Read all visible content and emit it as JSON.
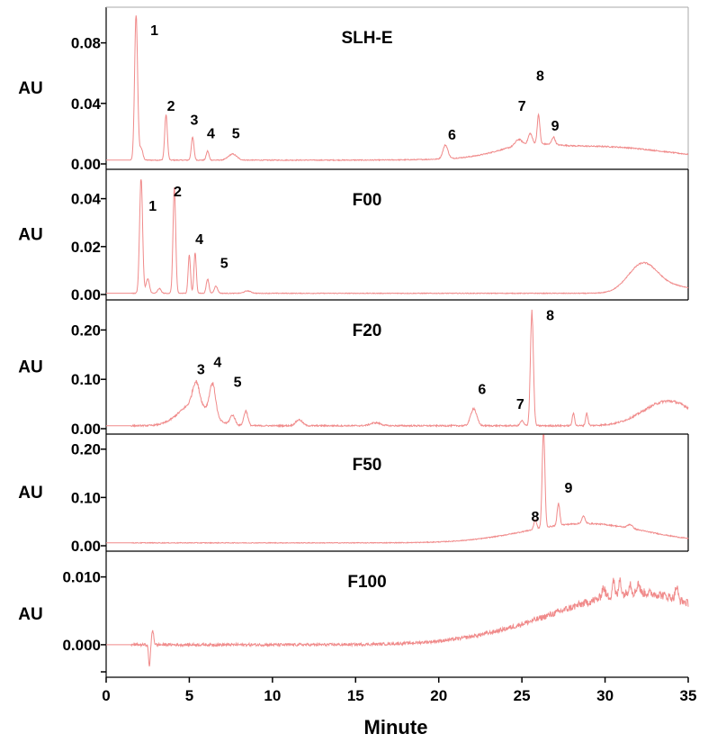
{
  "chart_data": {
    "type": "line",
    "xlabel": "Minute",
    "xlim": [
      0,
      35
    ],
    "xticks": [
      "0",
      "5",
      "10",
      "15",
      "20",
      "25",
      "30",
      "35"
    ],
    "line_color": "#f08a8a",
    "panels": [
      {
        "title": "SLH-E",
        "ylabel": "AU",
        "ylim": [
          0,
          0.1
        ],
        "yticks": [
          {
            "value": 0,
            "label": "0.00"
          },
          {
            "value": 0.04,
            "label": "0.04"
          },
          {
            "value": 0.08,
            "label": "0.08"
          }
        ],
        "baseline": 0.0025,
        "noise": 0.0003,
        "humps": [
          [
            29.5,
            4.2,
            0.009
          ],
          [
            25.2,
            1.6,
            0.005
          ]
        ],
        "peaks": [
          [
            1.8,
            0.096,
            0.09
          ],
          [
            2.1,
            0.008,
            0.1
          ],
          [
            3.6,
            0.03,
            0.08
          ],
          [
            5.2,
            0.015,
            0.08
          ],
          [
            6.1,
            0.006,
            0.08
          ],
          [
            7.6,
            0.004,
            0.25
          ],
          [
            20.4,
            0.009,
            0.15
          ],
          [
            24.8,
            0.004,
            0.2
          ],
          [
            25.5,
            0.007,
            0.12
          ],
          [
            26.0,
            0.019,
            0.08
          ],
          [
            26.9,
            0.005,
            0.1
          ]
        ],
        "labels": [
          {
            "text": "1",
            "x": 2.9,
            "y": 0.085
          },
          {
            "text": "2",
            "x": 3.9,
            "y": 0.035
          },
          {
            "text": "3",
            "x": 5.3,
            "y": 0.026
          },
          {
            "text": "4",
            "x": 6.3,
            "y": 0.017
          },
          {
            "text": "5",
            "x": 7.8,
            "y": 0.017
          },
          {
            "text": "6",
            "x": 20.8,
            "y": 0.016
          },
          {
            "text": "7",
            "x": 25.0,
            "y": 0.035
          },
          {
            "text": "8",
            "x": 26.1,
            "y": 0.055
          },
          {
            "text": "9",
            "x": 27.0,
            "y": 0.022
          }
        ]
      },
      {
        "title": "F00",
        "ylabel": "AU",
        "ylim": [
          0,
          0.05
        ],
        "yticks": [
          {
            "value": 0,
            "label": "0.00"
          },
          {
            "value": 0.02,
            "label": "0.02"
          },
          {
            "value": 0.04,
            "label": "0.04"
          }
        ],
        "baseline": 0.0005,
        "noise": 0.00015,
        "humps": [
          [
            32.3,
            0.9,
            0.0125
          ],
          [
            34.5,
            1.0,
            0.0025
          ]
        ],
        "peaks": [
          [
            2.1,
            0.048,
            0.09
          ],
          [
            2.5,
            0.006,
            0.1
          ],
          [
            3.2,
            0.002,
            0.1
          ],
          [
            4.1,
            0.044,
            0.08
          ],
          [
            5.0,
            0.016,
            0.07
          ],
          [
            5.35,
            0.017,
            0.07
          ],
          [
            6.1,
            0.006,
            0.08
          ],
          [
            6.6,
            0.003,
            0.1
          ],
          [
            8.5,
            0.001,
            0.2
          ]
        ],
        "labels": [
          {
            "text": "1",
            "x": 2.8,
            "y": 0.035
          },
          {
            "text": "2",
            "x": 4.3,
            "y": 0.041
          },
          {
            "text": "4",
            "x": 5.6,
            "y": 0.021
          },
          {
            "text": "5",
            "x": 7.1,
            "y": 0.011
          }
        ]
      },
      {
        "title": "F20",
        "ylabel": "AU",
        "ylim": [
          0,
          0.25
        ],
        "yticks": [
          {
            "value": 0,
            "label": "0.00"
          },
          {
            "value": 0.1,
            "label": "0.10"
          },
          {
            "value": 0.2,
            "label": "0.20"
          }
        ],
        "baseline": 0.006,
        "noise": 0.0015,
        "humps": [
          [
            5.3,
            0.9,
            0.045
          ],
          [
            33.8,
            1.5,
            0.05
          ]
        ],
        "peaks": [
          [
            5.4,
            0.045,
            0.2
          ],
          [
            6.4,
            0.065,
            0.18
          ],
          [
            7.6,
            0.02,
            0.15
          ],
          [
            8.4,
            0.03,
            0.12
          ],
          [
            11.6,
            0.012,
            0.2
          ],
          [
            16.2,
            0.006,
            0.3
          ],
          [
            22.1,
            0.035,
            0.18
          ],
          [
            25.0,
            0.01,
            0.1
          ],
          [
            25.6,
            0.23,
            0.09
          ],
          [
            28.1,
            0.025,
            0.07
          ],
          [
            28.9,
            0.025,
            0.07
          ]
        ],
        "labels": [
          {
            "text": "3",
            "x": 5.7,
            "y": 0.11
          },
          {
            "text": "4",
            "x": 6.7,
            "y": 0.125
          },
          {
            "text": "5",
            "x": 7.9,
            "y": 0.085
          },
          {
            "text": "6",
            "x": 22.6,
            "y": 0.07
          },
          {
            "text": "7",
            "x": 24.9,
            "y": 0.04
          },
          {
            "text": "8",
            "x": 26.7,
            "y": 0.22
          }
        ]
      },
      {
        "title": "F50",
        "ylabel": "AU",
        "ylim": [
          0,
          0.22
        ],
        "yticks": [
          {
            "value": 0,
            "label": "0.00"
          },
          {
            "value": 0.1,
            "label": "0.10"
          },
          {
            "value": 0.2,
            "label": "0.20"
          }
        ],
        "baseline": 0.006,
        "noise": 0.0008,
        "humps": [
          [
            28.8,
            3.6,
            0.04
          ]
        ],
        "peaks": [
          [
            26.3,
            0.205,
            0.08
          ],
          [
            25.8,
            0.02,
            0.08
          ],
          [
            27.2,
            0.045,
            0.08
          ],
          [
            28.7,
            0.015,
            0.1
          ],
          [
            31.5,
            0.008,
            0.15
          ]
        ],
        "labels": [
          {
            "text": "8",
            "x": 25.8,
            "y": 0.05
          },
          {
            "text": "9",
            "x": 27.8,
            "y": 0.11
          }
        ]
      },
      {
        "title": "F100",
        "ylabel": "AU",
        "ylim": [
          -0.004,
          0.013
        ],
        "yticks": [
          {
            "value": -0.004,
            "label": ""
          },
          {
            "value": 0,
            "label": "0.000"
          },
          {
            "value": 0.01,
            "label": "0.010"
          }
        ],
        "baseline": 0,
        "noise": 0.0002,
        "humps": [
          [
            31.0,
            5.0,
            0.0062
          ],
          [
            33.5,
            3.0,
            0.0018
          ]
        ],
        "peaks": [
          [
            2.6,
            -0.0032,
            0.05
          ],
          [
            2.8,
            0.0022,
            0.06
          ],
          [
            29.9,
            0.0015,
            0.1
          ],
          [
            30.5,
            0.0025,
            0.06
          ],
          [
            30.9,
            0.0025,
            0.06
          ],
          [
            31.5,
            0.0015,
            0.08
          ],
          [
            32.0,
            0.0015,
            0.08
          ],
          [
            34.3,
            0.0018,
            0.08
          ]
        ],
        "labels": []
      }
    ]
  }
}
